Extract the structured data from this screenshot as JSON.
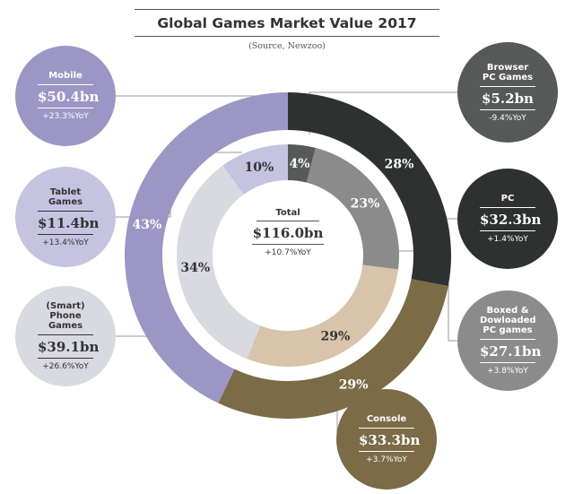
{
  "header": {
    "title": "Global Games Market Value 2017",
    "source": "(Source, Newzoo)"
  },
  "total": {
    "label": "Total",
    "value": "$116.0bn",
    "yoy": "+10.7%YoY"
  },
  "chart_data": {
    "type": "pie",
    "title": "Global Games Market Value 2017",
    "rings": [
      {
        "name": "outer",
        "slices": [
          {
            "label": "PC",
            "pct": 28,
            "value_bn": 32.3,
            "display": "$32.3bn",
            "yoy": "+1.4%YoY",
            "color": "#2f3130"
          },
          {
            "label": "Console",
            "pct": 29,
            "value_bn": 33.3,
            "display": "$33.3bn",
            "yoy": "+3.7%YoY",
            "color": "#7b6b47"
          },
          {
            "label": "Mobile",
            "pct": 43,
            "value_bn": 50.4,
            "display": "$50.4bn",
            "yoy": "+23.3%YoY",
            "color": "#9c96c4"
          }
        ]
      },
      {
        "name": "inner",
        "slices": [
          {
            "label": "Browser PC Games",
            "pct": 4,
            "value_bn": 5.2,
            "display": "$5.2bn",
            "yoy": "-9.4%YoY",
            "color": "#565958"
          },
          {
            "label": "Boxed & Dowloaded PC games",
            "pct": 23,
            "value_bn": 27.1,
            "display": "$27.1bn",
            "yoy": "+3.8%YoY",
            "color": "#8b8b8b"
          },
          {
            "label": "Console",
            "pct": 29,
            "value_bn": 33.3,
            "display": "$33.3bn",
            "yoy": "+3.7%YoY",
            "color": "#d8c4aa"
          },
          {
            "label": "(Smart) Phone Games",
            "pct": 34,
            "value_bn": 39.1,
            "display": "$39.1bn",
            "yoy": "+26.6%YoY",
            "color": "#d9d9e1"
          },
          {
            "label": "Tablet Games",
            "pct": 10,
            "value_bn": 11.4,
            "display": "$11.4bn",
            "yoy": "+13.4%YoY",
            "color": "#c6c3e1"
          }
        ]
      }
    ]
  },
  "bubbles": [
    {
      "id": "mobile",
      "name": "Mobile",
      "value": "$50.4bn",
      "yoy": "+23.3%YoY",
      "bg": "#9c96c4",
      "fg": "#ffffff"
    },
    {
      "id": "tablet",
      "name": "Tablet Games",
      "value": "$11.4bn",
      "yoy": "+13.4%YoY",
      "bg": "#c6c3e1",
      "fg": "#333333"
    },
    {
      "id": "phone",
      "name": "(Smart) Phone Games",
      "value": "$39.1bn",
      "yoy": "+26.6%YoY",
      "bg": "#d9d9e1",
      "fg": "#333333"
    },
    {
      "id": "browser",
      "name": "Browser PC Games",
      "value": "$5.2bn",
      "yoy": "-9.4%YoY",
      "bg": "#565958",
      "fg": "#ffffff"
    },
    {
      "id": "pc",
      "name": "PC",
      "value": "$32.3bn",
      "yoy": "+1.4%YoY",
      "bg": "#2f3130",
      "fg": "#ffffff"
    },
    {
      "id": "boxed",
      "name": "Boxed & Dowloaded PC games",
      "value": "$27.1bn",
      "yoy": "+3.8%YoY",
      "bg": "#8b8b8b",
      "fg": "#ffffff"
    },
    {
      "id": "console",
      "name": "Console",
      "value": "$33.3bn",
      "yoy": "+3.7%YoY",
      "bg": "#7b6b47",
      "fg": "#ffffff"
    }
  ]
}
